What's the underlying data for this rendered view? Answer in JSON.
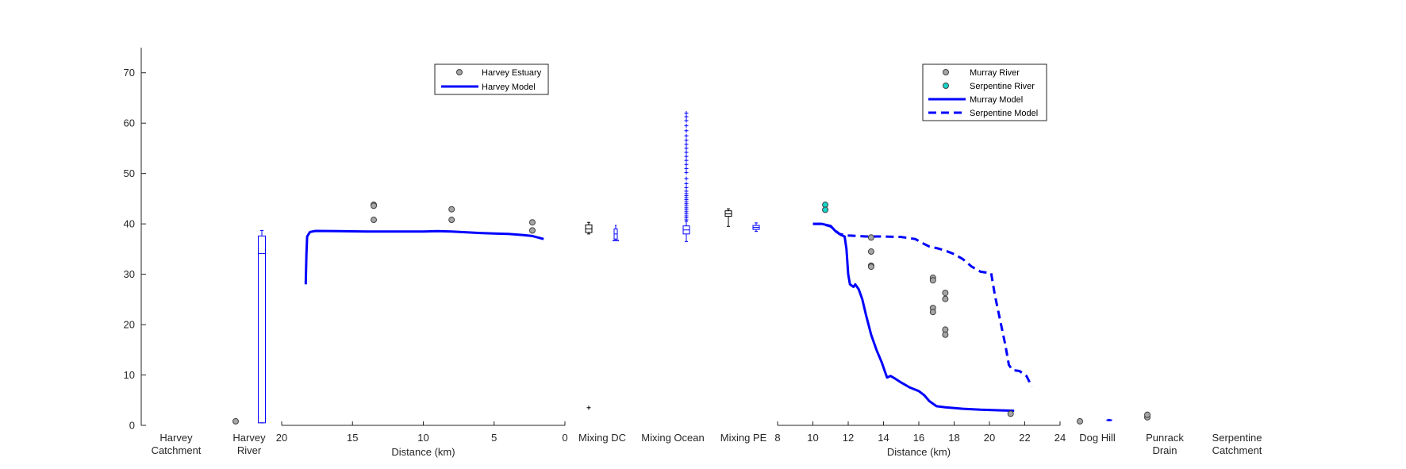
{
  "chart_data": {
    "type": "composite",
    "ylim": [
      0,
      75
    ],
    "yticks": [
      0,
      10,
      20,
      30,
      40,
      50,
      60,
      70
    ],
    "colors": {
      "model": "#0000ff",
      "data_gray": "#a6a6a6",
      "data_cyan": "#17d4c8",
      "axis": "#262626"
    },
    "categories": {
      "harvey_catchment": [
        "Harvey",
        "Catchment"
      ],
      "harvey_river": [
        "Harvey",
        "River"
      ],
      "mixing_dc": [
        "Mixing DC"
      ],
      "mixing_ocean": [
        "Mixing Ocean"
      ],
      "mixing_pe": [
        "Mixing PE"
      ],
      "dog_hill": [
        "Dog Hill"
      ],
      "punrack_drain": [
        "Punrack",
        "Drain"
      ],
      "serpentine_catchment": [
        "Serpentine",
        "Catchment"
      ]
    },
    "harvey_section": {
      "xlabel": "Distance (km)",
      "xlim": [
        20,
        0
      ],
      "xticks": [
        "20",
        "15",
        "10",
        "5",
        "0"
      ],
      "xtick_values": [
        20,
        15,
        10,
        5,
        0
      ],
      "legend": [
        "Harvey Estuary",
        "Harvey Model"
      ],
      "observed": [
        [
          13.5,
          43.8
        ],
        [
          13.5,
          43.6
        ],
        [
          13.5,
          40.8
        ],
        [
          8,
          42.9
        ],
        [
          8,
          40.8
        ],
        [
          2.3,
          40.3
        ],
        [
          2.3,
          38.7
        ]
      ],
      "model": [
        [
          18.3,
          28
        ],
        [
          18.25,
          34
        ],
        [
          18.2,
          37.5
        ],
        [
          18.0,
          38.4
        ],
        [
          17.6,
          38.6
        ],
        [
          16,
          38.55
        ],
        [
          14,
          38.5
        ],
        [
          12,
          38.5
        ],
        [
          10,
          38.5
        ],
        [
          9,
          38.55
        ],
        [
          8,
          38.5
        ],
        [
          6,
          38.2
        ],
        [
          5,
          38.1
        ],
        [
          4,
          38.0
        ],
        [
          3,
          37.8
        ],
        [
          2.3,
          37.6
        ],
        [
          1.5,
          37.0
        ]
      ]
    },
    "serpentine_section": {
      "xlabel": "Distance (km)",
      "xlim": [
        8,
        24
      ],
      "xticks": [
        "8",
        "10",
        "12",
        "14",
        "16",
        "18",
        "20",
        "22",
        "24"
      ],
      "xtick_values": [
        8,
        10,
        12,
        14,
        16,
        18,
        20,
        22,
        24
      ],
      "legend": [
        "Murray River",
        "Serpentine River",
        "Murray Model",
        "Serpentine Model"
      ],
      "murray_observed": [
        [
          13.3,
          37.3
        ],
        [
          13.3,
          34.5
        ],
        [
          13.3,
          31.7
        ],
        [
          13.3,
          31.5
        ],
        [
          16.8,
          29.3
        ],
        [
          16.8,
          28.8
        ],
        [
          16.8,
          23.3
        ],
        [
          16.8,
          22.5
        ],
        [
          17.5,
          26.3
        ],
        [
          17.5,
          25.1
        ],
        [
          17.5,
          19.0
        ],
        [
          17.5,
          18.0
        ],
        [
          21.2,
          2.3
        ]
      ],
      "serpentine_observed": [
        [
          10.7,
          43.8
        ],
        [
          10.7,
          42.8
        ]
      ],
      "murray_model": [
        [
          10.0,
          40.0
        ],
        [
          10.5,
          40.0
        ],
        [
          11.0,
          39.6
        ],
        [
          11.3,
          38.5
        ],
        [
          11.6,
          37.8
        ],
        [
          11.8,
          37.5
        ],
        [
          11.9,
          35
        ],
        [
          12.0,
          30
        ],
        [
          12.1,
          28
        ],
        [
          12.3,
          27.5
        ],
        [
          12.4,
          28
        ],
        [
          12.6,
          27
        ],
        [
          12.8,
          25
        ],
        [
          13.0,
          22
        ],
        [
          13.3,
          18
        ],
        [
          13.6,
          15
        ],
        [
          13.9,
          12.5
        ],
        [
          14.1,
          10.5
        ],
        [
          14.2,
          9.5
        ],
        [
          14.4,
          9.8
        ],
        [
          14.6,
          9.4
        ],
        [
          15.0,
          8.5
        ],
        [
          15.5,
          7.5
        ],
        [
          16.0,
          6.8
        ],
        [
          16.3,
          6.0
        ],
        [
          16.6,
          4.8
        ],
        [
          17.0,
          3.8
        ],
        [
          17.5,
          3.6
        ],
        [
          18.5,
          3.3
        ],
        [
          19.5,
          3.1
        ],
        [
          20.5,
          3.0
        ],
        [
          21.4,
          2.9
        ]
      ],
      "serpentine_model": [
        [
          10.0,
          40.0
        ],
        [
          10.5,
          40.0
        ],
        [
          11.0,
          39.5
        ],
        [
          11.5,
          38.0
        ],
        [
          12.0,
          37.7
        ],
        [
          13.0,
          37.5
        ],
        [
          14.0,
          37.5
        ],
        [
          15.0,
          37.4
        ],
        [
          15.8,
          37.0
        ],
        [
          16.2,
          36.2
        ],
        [
          16.6,
          35.5
        ],
        [
          17.0,
          35.2
        ],
        [
          17.5,
          34.7
        ],
        [
          18.0,
          34.0
        ],
        [
          18.5,
          33.0
        ],
        [
          19.0,
          31.5
        ],
        [
          19.5,
          30.5
        ],
        [
          20.1,
          30.2
        ],
        [
          20.3,
          26
        ],
        [
          20.6,
          21
        ],
        [
          20.9,
          16
        ],
        [
          21.1,
          12
        ],
        [
          21.3,
          11
        ],
        [
          21.7,
          10.8
        ],
        [
          22.1,
          9.8
        ],
        [
          22.4,
          7.7
        ]
      ]
    },
    "boxplots": {
      "harvey_river_model": {
        "whisker_low": 0.5,
        "q1": 0.5,
        "median": 34.1,
        "q3": 37.6,
        "whisker_high": 38.7,
        "outliers": []
      },
      "mixing_dc_observed": {
        "whisker_low": 38.0,
        "q1": 38.3,
        "median": 39.0,
        "q3": 39.8,
        "whisker_high": 40.3,
        "outliers": [
          3.5
        ]
      },
      "mixing_dc_model": {
        "whisker_low": 36.7,
        "q1": 37.0,
        "median": 38.0,
        "q3": 39.0,
        "whisker_high": 39.7,
        "outliers": [
          36.7
        ]
      },
      "mixing_ocean_model": {
        "whisker_low": 36.5,
        "q1": 38.0,
        "median": 38.8,
        "q3": 39.6,
        "whisker_high": 40.5,
        "outliers": [
          40.8,
          41.2,
          41.6,
          42.0,
          42.4,
          42.8,
          43.2,
          43.6,
          44.0,
          44.4,
          44.8,
          45.2,
          45.6,
          46.0,
          46.5,
          47.2,
          48.0,
          49.0,
          50.2,
          51.0,
          51.8,
          52.6,
          53.4,
          54.2,
          55.0,
          55.8,
          56.6,
          57.5,
          58.5,
          59.5,
          60.5,
          61.3,
          62.0
        ]
      },
      "mixing_pe_observed": {
        "whisker_low": 39.5,
        "q1": 41.5,
        "median": 42.0,
        "q3": 42.6,
        "whisker_high": 43.0,
        "outliers": []
      },
      "mixing_pe_model": {
        "whisker_low": 38.5,
        "q1": 38.9,
        "median": 39.3,
        "q3": 39.7,
        "whisker_high": 40.2,
        "outliers": []
      },
      "dog_hill_model": {
        "whisker_low": 0.9,
        "q1": 1.0,
        "median": 1.05,
        "q3": 1.1,
        "whisker_high": 1.2,
        "outliers": []
      }
    },
    "category_points": {
      "harvey_river_observed": [
        0.8
      ],
      "dog_hill_observed": [
        0.8
      ],
      "punrack_drain_observed": [
        1.6,
        2.1
      ]
    },
    "grid": false,
    "legend_placement": [
      "top-center of harvey section",
      "top-right of serpentine section"
    ]
  }
}
